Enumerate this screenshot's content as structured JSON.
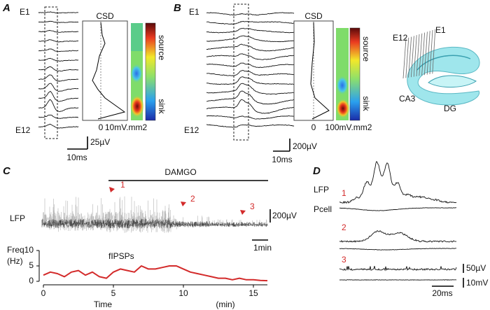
{
  "panel_a": {
    "letter": "A",
    "top_electrode": "E1",
    "bottom_electrode": "E12",
    "csd_title": "CSD",
    "csd_zero": "0",
    "csd_max": "10mV.mm2",
    "source": "source",
    "sink": "sink",
    "voltage_scale": "25µV",
    "time_scale": "10ms"
  },
  "panel_b": {
    "letter": "B",
    "top_electrode": "E1",
    "bottom_electrode": "E12",
    "csd_title": "CSD",
    "csd_zero": "0",
    "csd_max": "100mV.mm2",
    "source": "source",
    "sink": "sink",
    "voltage_scale": "200µV",
    "time_scale": "10ms"
  },
  "diagram": {
    "electrode_first": "E12",
    "electrode_last": "E1",
    "region_ca3": "CA3",
    "region_dg": "DG"
  },
  "panel_c": {
    "letter": "C",
    "drug": "DAMGO",
    "markers": [
      "1",
      "2",
      "3"
    ],
    "trace_label": "LFP",
    "voltage_scale": "200µV",
    "time_scale": "1min",
    "y_label_top": "Freq",
    "y_label_bottom": "(Hz)",
    "x_label": "Time",
    "x_unit": "(min)"
  },
  "chart_data": {
    "type": "line",
    "x": [
      0,
      0.5,
      1,
      1.5,
      2,
      2.5,
      3,
      3.5,
      4,
      4.5,
      5,
      5.5,
      6,
      6.5,
      7,
      7.5,
      8,
      8.5,
      9,
      9.5,
      10,
      10.5,
      11,
      11.5,
      12,
      12.5,
      13,
      13.5,
      14,
      14.5,
      15,
      15.5,
      16
    ],
    "series": [
      {
        "name": "fIPSPs",
        "color": "#d32a2a",
        "values": [
          2,
          3,
          2.5,
          1.5,
          3,
          3.5,
          2,
          3,
          1.5,
          1,
          3,
          4,
          3.5,
          3,
          5,
          4,
          4,
          4.5,
          5,
          5,
          4,
          3,
          2.5,
          2,
          1.5,
          1,
          1,
          0.5,
          1,
          0.5,
          0.5,
          0.3,
          0.2
        ]
      }
    ],
    "xlim": [
      0,
      16
    ],
    "xticks": [
      0,
      5,
      10,
      15
    ],
    "ylim": [
      0,
      10
    ],
    "yticks": [
      0,
      5,
      10
    ]
  },
  "panel_d": {
    "letter": "D",
    "lfp_label": "LFP",
    "cell_label": "Pcell",
    "events": [
      "1",
      "2",
      "3"
    ],
    "voltage_scale": "50µV",
    "cell_scale": "10mV",
    "time_scale": "20ms"
  }
}
